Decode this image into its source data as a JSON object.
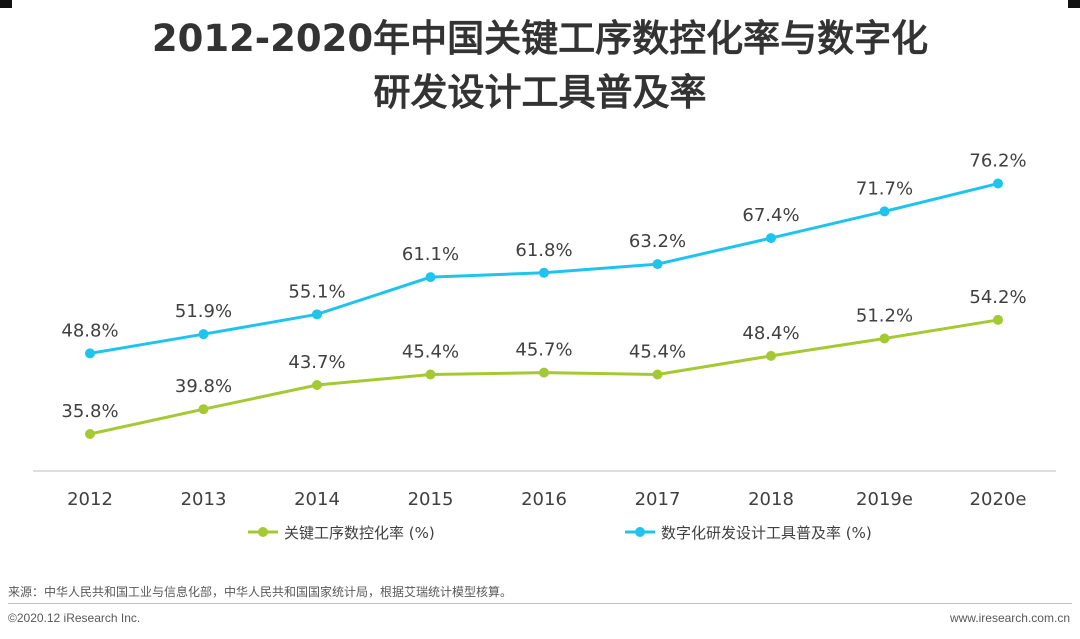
{
  "title_line1": "2012-2020年中国关键工序数控化率与数字化",
  "title_line2": "研发设计工具普及率",
  "chart_data": {
    "type": "line",
    "categories": [
      "2012",
      "2013",
      "2014",
      "2015",
      "2016",
      "2017",
      "2018",
      "2019e",
      "2020e"
    ],
    "series": [
      {
        "name": "关键工序数控化率 (%)",
        "color": "#a4c932",
        "values": [
          35.8,
          39.8,
          43.7,
          45.4,
          45.7,
          45.4,
          48.4,
          51.2,
          54.2
        ]
      },
      {
        "name": "数字化研发设计工具普及率 (%)",
        "color": "#1fc4ee",
        "values": [
          48.8,
          51.9,
          55.1,
          61.1,
          61.8,
          63.2,
          67.4,
          71.7,
          76.2
        ]
      }
    ],
    "value_suffix": "%",
    "legend_position": "bottom",
    "grid": false
  },
  "source": "来源：中华人民共和国工业与信息化部，中华人民共和国国家统计局，根据艾瑞统计模型核算。",
  "copyright": "©2020.12 iResearch Inc.",
  "website": "www.iresearch.com.cn"
}
